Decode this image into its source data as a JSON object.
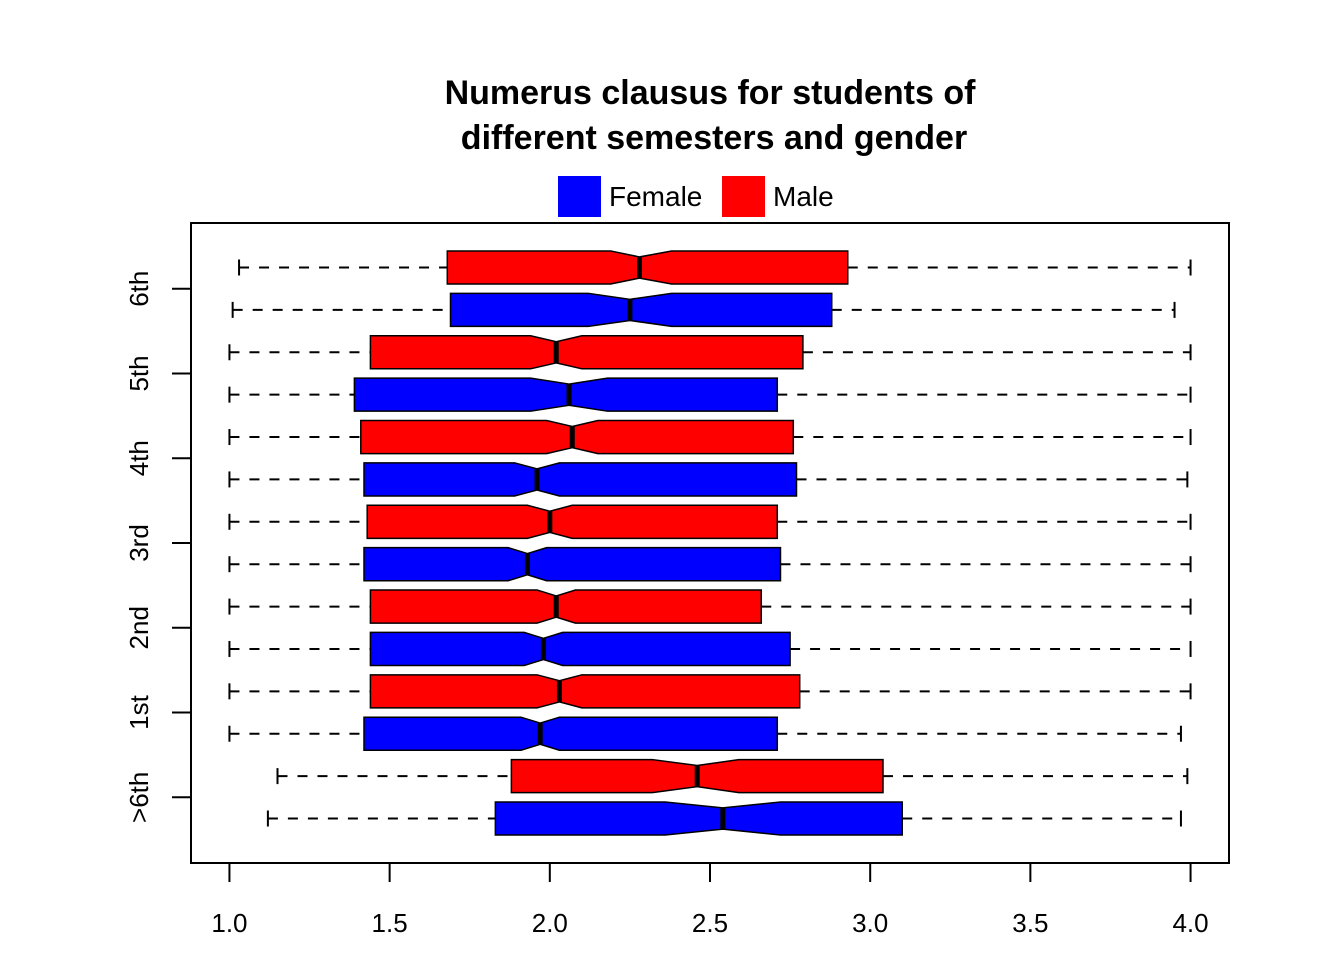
{
  "chart_data": {
    "type": "boxplot",
    "orientation": "horizontal",
    "notched": true,
    "title_lines": [
      "Numerus clausus for students of",
      "different semesters and gender"
    ],
    "xlabel": "",
    "ylabel": "",
    "xlim": [
      0.88,
      4.12
    ],
    "x_ticks": [
      "1.0",
      "1.5",
      "2.0",
      "2.5",
      "3.0",
      "3.5",
      "4.0"
    ],
    "x_tick_values": [
      1.0,
      1.5,
      2.0,
      2.5,
      3.0,
      3.5,
      4.0
    ],
    "groups": [
      ">6th",
      "1st",
      "2nd",
      "3rd",
      "4th",
      "5th",
      "6th"
    ],
    "legend": [
      {
        "label": "Female",
        "color": "#0000ff"
      },
      {
        "label": "Male",
        "color": "#ff0000"
      }
    ],
    "grid": false,
    "boxes": [
      {
        "group": ">6th",
        "series": "Female",
        "whisker_low": 1.12,
        "q1": 1.83,
        "median": 2.54,
        "q3": 3.1,
        "whisker_high": 3.97,
        "notch_low": 2.36,
        "notch_high": 2.72
      },
      {
        "group": ">6th",
        "series": "Male",
        "whisker_low": 1.15,
        "q1": 1.88,
        "median": 2.46,
        "q3": 3.04,
        "whisker_high": 3.99,
        "notch_low": 2.32,
        "notch_high": 2.59
      },
      {
        "group": "1st",
        "series": "Female",
        "whisker_low": 1.0,
        "q1": 1.42,
        "median": 1.97,
        "q3": 2.71,
        "whisker_high": 3.97,
        "notch_low": 1.91,
        "notch_high": 2.03
      },
      {
        "group": "1st",
        "series": "Male",
        "whisker_low": 1.0,
        "q1": 1.44,
        "median": 2.03,
        "q3": 2.78,
        "whisker_high": 4.0,
        "notch_low": 1.96,
        "notch_high": 2.1
      },
      {
        "group": "2nd",
        "series": "Female",
        "whisker_low": 1.0,
        "q1": 1.44,
        "median": 1.98,
        "q3": 2.75,
        "whisker_high": 4.0,
        "notch_low": 1.92,
        "notch_high": 2.04
      },
      {
        "group": "2nd",
        "series": "Male",
        "whisker_low": 1.0,
        "q1": 1.44,
        "median": 2.02,
        "q3": 2.66,
        "whisker_high": 4.0,
        "notch_low": 1.96,
        "notch_high": 2.08
      },
      {
        "group": "3rd",
        "series": "Female",
        "whisker_low": 1.0,
        "q1": 1.42,
        "median": 1.93,
        "q3": 2.72,
        "whisker_high": 4.0,
        "notch_low": 1.87,
        "notch_high": 1.99
      },
      {
        "group": "3rd",
        "series": "Male",
        "whisker_low": 1.0,
        "q1": 1.43,
        "median": 2.0,
        "q3": 2.71,
        "whisker_high": 4.0,
        "notch_low": 1.93,
        "notch_high": 2.07
      },
      {
        "group": "4th",
        "series": "Female",
        "whisker_low": 1.0,
        "q1": 1.42,
        "median": 1.96,
        "q3": 2.77,
        "whisker_high": 3.99,
        "notch_low": 1.89,
        "notch_high": 2.03
      },
      {
        "group": "4th",
        "series": "Male",
        "whisker_low": 1.0,
        "q1": 1.41,
        "median": 2.07,
        "q3": 2.76,
        "whisker_high": 4.0,
        "notch_low": 1.99,
        "notch_high": 2.15
      },
      {
        "group": "5th",
        "series": "Female",
        "whisker_low": 1.0,
        "q1": 1.39,
        "median": 2.06,
        "q3": 2.71,
        "whisker_high": 4.0,
        "notch_low": 1.94,
        "notch_high": 2.18
      },
      {
        "group": "5th",
        "series": "Male",
        "whisker_low": 1.0,
        "q1": 1.44,
        "median": 2.02,
        "q3": 2.79,
        "whisker_high": 4.0,
        "notch_low": 1.94,
        "notch_high": 2.1
      },
      {
        "group": "6th",
        "series": "Female",
        "whisker_low": 1.01,
        "q1": 1.69,
        "median": 2.25,
        "q3": 2.88,
        "whisker_high": 3.95,
        "notch_low": 2.12,
        "notch_high": 2.38
      },
      {
        "group": "6th",
        "series": "Male",
        "whisker_low": 1.03,
        "q1": 1.68,
        "median": 2.28,
        "q3": 2.93,
        "whisker_high": 4.0,
        "notch_low": 2.19,
        "notch_high": 2.38
      }
    ]
  }
}
